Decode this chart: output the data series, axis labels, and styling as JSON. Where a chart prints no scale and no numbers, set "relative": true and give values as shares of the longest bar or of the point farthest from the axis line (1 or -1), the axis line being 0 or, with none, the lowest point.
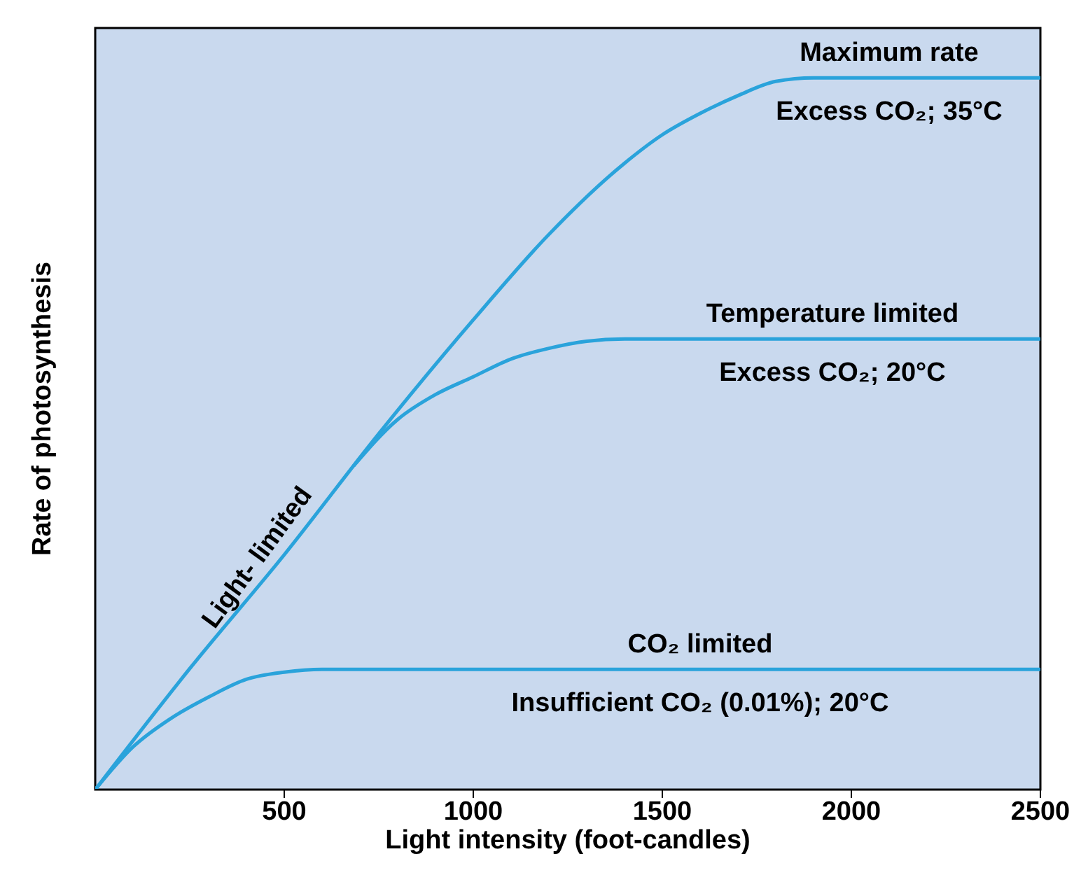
{
  "chart_data": {
    "type": "line",
    "relative": true,
    "xlabel": "Light intensity (foot-candles)",
    "ylabel": "Rate of photosynthesis",
    "xlim": [
      0,
      2500
    ],
    "xticks": [
      500,
      1000,
      1500,
      2000,
      2500
    ],
    "marker": "none",
    "line_style": "solid",
    "series": [
      {
        "color": "#2aa3db",
        "x": [
          0,
          250,
          500,
          750,
          1000,
          1200,
          1400,
          1500,
          1600,
          1700,
          1800,
          1900,
          2500
        ],
        "values": [
          0,
          0.17,
          0.33,
          0.5,
          0.66,
          0.78,
          0.88,
          0.92,
          0.95,
          0.975,
          0.995,
          1,
          1
        ]
      },
      {
        "color": "#2aa3db",
        "x": [
          684,
          800,
          900,
          1000,
          1100,
          1200,
          1300,
          1400,
          2500
        ],
        "values": [
          0.455,
          0.52,
          0.555,
          0.58,
          0.605,
          0.62,
          0.63,
          0.633,
          0.633
        ]
      },
      {
        "color": "#2aa3db",
        "x": [
          0,
          100,
          200,
          300,
          400,
          500,
          600,
          2500
        ],
        "values": [
          0,
          0.06,
          0.1,
          0.13,
          0.155,
          0.165,
          0.169,
          0.169
        ]
      }
    ],
    "annotations": [
      {
        "text": "Maximum rate",
        "x": 2100,
        "y": 1
      },
      {
        "text": "Excess CO₂; 35°C",
        "x": 2100,
        "y": 1
      },
      {
        "text": "Temperature limited",
        "x": 1950,
        "y": 0.633
      },
      {
        "text": "Excess CO₂; 20°C",
        "x": 1950,
        "y": 0.633
      },
      {
        "text": "CO₂ limited",
        "x": 1600,
        "y": 0.169
      },
      {
        "text": "Insufficient CO₂ (0.01%); 20°C",
        "x": 1600,
        "y": 0.169
      },
      {
        "text": "Light- limited",
        "x": 470,
        "y": 0.31
      }
    ]
  }
}
